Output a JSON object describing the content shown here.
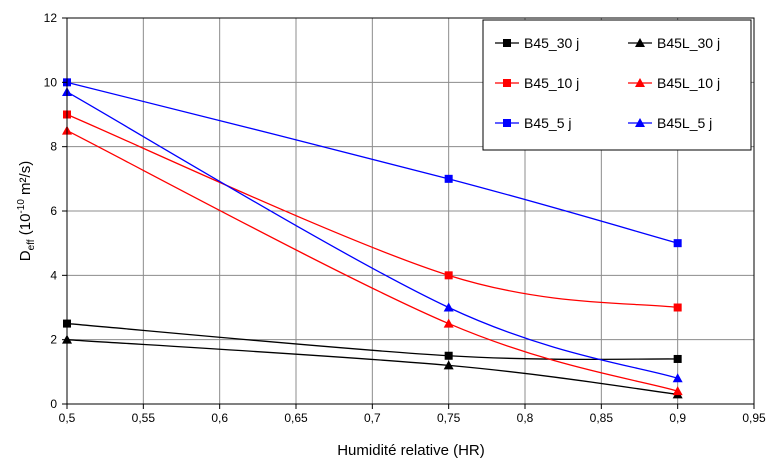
{
  "chart_data": {
    "type": "line",
    "xlabel": "Humidité relative (HR)",
    "ylabel": {
      "main": "D",
      "sub": "eff",
      "rest": " (10",
      "sup": "-10",
      "unit": " m²/s)"
    },
    "xlim": [
      0.5,
      0.95
    ],
    "ylim": [
      0,
      12
    ],
    "x_ticks": [
      0.5,
      0.55,
      0.6,
      0.65,
      0.7,
      0.75,
      0.8,
      0.85,
      0.9,
      0.95
    ],
    "x_tick_labels": [
      "0,5",
      "0,55",
      "0,6",
      "0,65",
      "0,7",
      "0,75",
      "0,8",
      "0,85",
      "0,9",
      "0,95"
    ],
    "y_ticks": [
      0,
      2,
      4,
      6,
      8,
      10,
      12
    ],
    "y_tick_labels": [
      "0",
      "2",
      "4",
      "6",
      "8",
      "10",
      "12"
    ],
    "grid": true,
    "legend_position": "top-right",
    "x": [
      0.5,
      0.75,
      0.9
    ],
    "series": [
      {
        "name": "B45_30 j",
        "color": "#000000",
        "marker": "square",
        "values": [
          2.5,
          1.5,
          1.4
        ]
      },
      {
        "name": "B45L_30 j",
        "color": "#000000",
        "marker": "triangle",
        "values": [
          2.0,
          1.2,
          0.3
        ]
      },
      {
        "name": "B45_10 j",
        "color": "#ff0000",
        "marker": "square",
        "values": [
          9.0,
          4.0,
          3.0
        ]
      },
      {
        "name": "B45L_10 j",
        "color": "#ff0000",
        "marker": "triangle",
        "values": [
          8.5,
          2.5,
          0.4
        ]
      },
      {
        "name": "B45_5 j",
        "color": "#0000ff",
        "marker": "square",
        "values": [
          10.0,
          7.0,
          5.0
        ]
      },
      {
        "name": "B45L_5 j",
        "color": "#0000ff",
        "marker": "triangle",
        "values": [
          9.7,
          3.0,
          0.8
        ]
      }
    ]
  }
}
